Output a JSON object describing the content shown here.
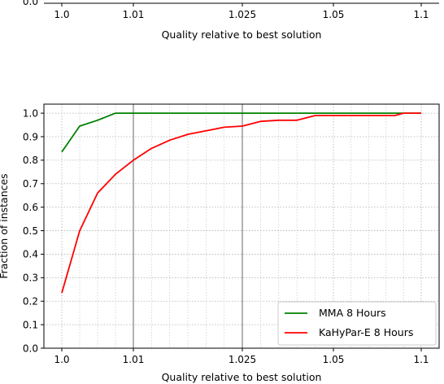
{
  "top_fragment": {
    "y_tick_label": "0.0",
    "x_tick_labels": [
      "1.0",
      "1.01",
      "1.025",
      "1.05",
      "1.1"
    ],
    "xlabel": "Quality relative to best solution"
  },
  "chart_data": {
    "type": "line",
    "title": "",
    "xlabel": "Quality relative to best solution",
    "ylabel": "Fraction of instances",
    "x_ticks": [
      "1.0",
      "1.01",
      "1.025",
      "1.05",
      "1.1"
    ],
    "y_ticks": [
      "0.0",
      "0.1",
      "0.2",
      "0.3",
      "0.4",
      "0.5",
      "0.6",
      "0.7",
      "0.8",
      "0.9",
      "1.0"
    ],
    "ylim": [
      0,
      1.04
    ],
    "grid": true,
    "legend_position": "lower-right",
    "reference_lines_x": [
      1.01,
      1.025
    ],
    "series": [
      {
        "name": "MMA 8 Hours",
        "color": "#008000",
        "points": [
          [
            1.0,
            0.835
          ],
          [
            1.0025,
            0.945
          ],
          [
            1.005,
            0.97
          ],
          [
            1.0075,
            1.0
          ],
          [
            1.01,
            1.0
          ],
          [
            1.025,
            1.0
          ],
          [
            1.05,
            1.0
          ],
          [
            1.1,
            1.0
          ]
        ]
      },
      {
        "name": "KaHyPar-E 8 Hours",
        "color": "#ff0000",
        "points": [
          [
            1.0,
            0.235
          ],
          [
            1.0025,
            0.5
          ],
          [
            1.005,
            0.66
          ],
          [
            1.0075,
            0.74
          ],
          [
            1.01,
            0.8
          ],
          [
            1.0125,
            0.85
          ],
          [
            1.015,
            0.885
          ],
          [
            1.0175,
            0.91
          ],
          [
            1.02,
            0.925
          ],
          [
            1.0225,
            0.94
          ],
          [
            1.025,
            0.945
          ],
          [
            1.03,
            0.965
          ],
          [
            1.035,
            0.97
          ],
          [
            1.04,
            0.97
          ],
          [
            1.045,
            0.99
          ],
          [
            1.05,
            0.99
          ],
          [
            1.06,
            0.99
          ],
          [
            1.075,
            0.99
          ],
          [
            1.085,
            0.99
          ],
          [
            1.09,
            1.0
          ],
          [
            1.1,
            1.0
          ]
        ]
      }
    ]
  }
}
